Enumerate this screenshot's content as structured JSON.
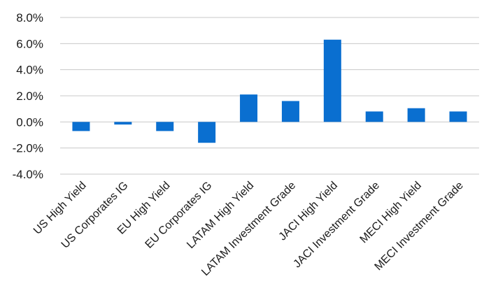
{
  "chart_data": {
    "type": "bar",
    "title": "",
    "xlabel": "",
    "ylabel": "",
    "categories": [
      "US High Yield",
      "US Corporates IG",
      "EU High Yield",
      "EU Corporates IG",
      "LATAM High Yield",
      "LATAM Investment Grade",
      "JACI High Yield",
      "JACI Investment Grade",
      "MECI High Yield",
      "MECI Investment Grade"
    ],
    "values": [
      -0.7,
      -0.2,
      -0.7,
      -1.6,
      2.1,
      1.6,
      6.3,
      0.8,
      1.05,
      0.8
    ],
    "ylim": [
      -4.0,
      8.0
    ],
    "yticks": [
      "8.0%",
      "6.0%",
      "4.0%",
      "2.0%",
      "0.0%",
      "-2.0%",
      "-4.0%"
    ],
    "ytick_values": [
      8,
      6,
      4,
      2,
      0,
      -2,
      -4
    ],
    "grid": true,
    "legend": "none",
    "bar_color": "#0a6fd0",
    "grid_color": "#c8c8c8"
  }
}
